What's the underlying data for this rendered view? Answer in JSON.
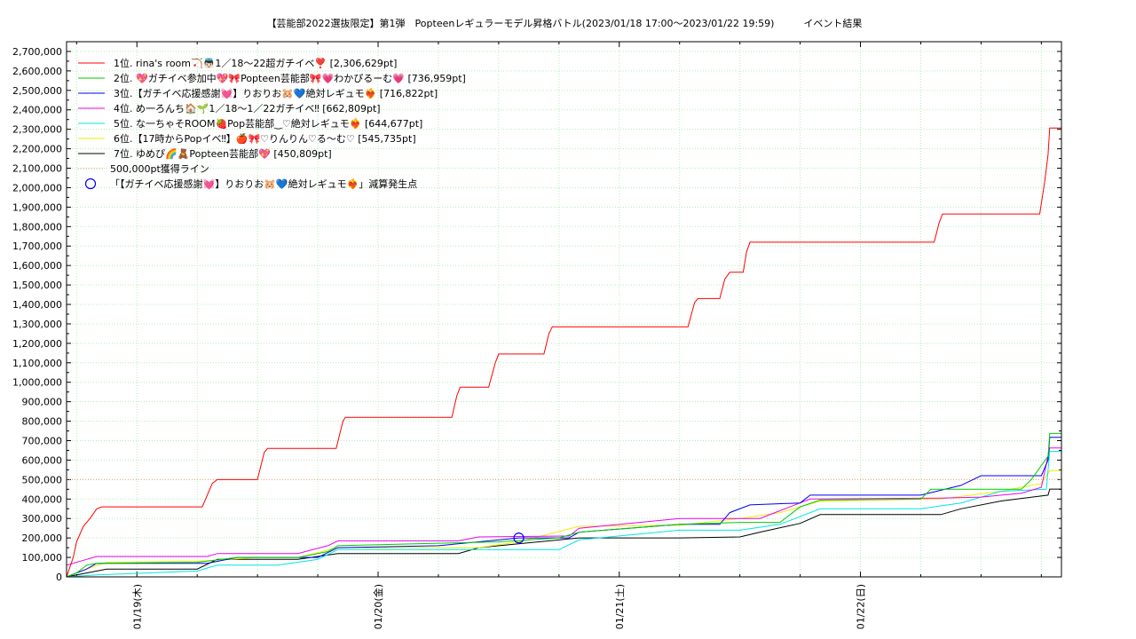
{
  "chart_data": {
    "type": "line",
    "title": "【芸能部2022選抜限定】第1弾　Popteenレギュラーモデル昇格バトル(2023/01/18 17:00〜2023/01/22 19:59)　　　イベント結果",
    "ylim": [
      0,
      2750000
    ],
    "xlim": [
      "2023-01-18 17:00",
      "2023-01-22 20:00"
    ],
    "grid": true,
    "legend_position": "top-left",
    "x_tick_labels": [
      "01/19(木)",
      "01/20(金)",
      "01/21(土)",
      "01/22(日)"
    ],
    "y_tick_labels": [
      "0",
      "100,000",
      "200,000",
      "300,000",
      "400,000",
      "500,000",
      "600,000",
      "700,000",
      "800,000",
      "900,000",
      "1,000,000",
      "1,100,000",
      "1,200,000",
      "1,300,000",
      "1,400,000",
      "1,500,000",
      "1,600,000",
      "1,700,000",
      "1,800,000",
      "1,900,000",
      "2,000,000",
      "2,100,000",
      "2,200,000",
      "2,300,000",
      "2,400,000",
      "2,500,000",
      "2,600,000",
      "2,700,000"
    ],
    "reference_line": {
      "label": "500,000pt獲得ライン",
      "value": 500000,
      "color": "#ff9966"
    },
    "marker": {
      "label": "「【ガチイベ応援感謝💓】りおりお🐹💙絶対レギュモ❤️‍🔥」減算発生点",
      "x": "2023-01-20 14:00",
      "y": 200000,
      "color": "#0000ff"
    },
    "series": [
      {
        "name": "1位. rina's room🏹👼🏻1／18〜22超ガチイベ❣️ [2,306,629pt]",
        "color": "#ff0000",
        "points": [
          [
            "2023-01-18 17:00",
            0
          ],
          [
            "2023-01-18 17:40",
            100000
          ],
          [
            "2023-01-18 18:00",
            180000
          ],
          [
            "2023-01-18 18:40",
            260000
          ],
          [
            "2023-01-18 19:20",
            300000
          ],
          [
            "2023-01-18 20:00",
            350000
          ],
          [
            "2023-01-18 20:30",
            360000
          ],
          [
            "2023-01-19 06:30",
            360000
          ],
          [
            "2023-01-19 07:30",
            480000
          ],
          [
            "2023-01-19 08:00",
            500000
          ],
          [
            "2023-01-19 12:00",
            500000
          ],
          [
            "2023-01-19 12:40",
            640000
          ],
          [
            "2023-01-19 13:00",
            660000
          ],
          [
            "2023-01-19 19:50",
            660000
          ],
          [
            "2023-01-19 20:30",
            800000
          ],
          [
            "2023-01-19 20:45",
            820000
          ],
          [
            "2023-01-20 07:20",
            820000
          ],
          [
            "2023-01-20 07:50",
            930000
          ],
          [
            "2023-01-20 08:10",
            975000
          ],
          [
            "2023-01-20 11:00",
            975000
          ],
          [
            "2023-01-20 11:40",
            1100000
          ],
          [
            "2023-01-20 12:00",
            1145000
          ],
          [
            "2023-01-20 16:30",
            1145000
          ],
          [
            "2023-01-20 17:00",
            1250000
          ],
          [
            "2023-01-20 17:20",
            1285000
          ],
          [
            "2023-01-21 06:50",
            1285000
          ],
          [
            "2023-01-21 07:30",
            1410000
          ],
          [
            "2023-01-21 07:50",
            1430000
          ],
          [
            "2023-01-21 10:00",
            1430000
          ],
          [
            "2023-01-21 10:30",
            1530000
          ],
          [
            "2023-01-21 11:00",
            1565000
          ],
          [
            "2023-01-21 12:20",
            1565000
          ],
          [
            "2023-01-21 12:40",
            1670000
          ],
          [
            "2023-01-21 13:00",
            1720000
          ],
          [
            "2023-01-22 07:20",
            1720000
          ],
          [
            "2023-01-22 07:50",
            1820000
          ],
          [
            "2023-01-22 08:10",
            1865000
          ],
          [
            "2023-01-22 17:50",
            1865000
          ],
          [
            "2023-01-22 18:20",
            2030000
          ],
          [
            "2023-01-22 18:40",
            2170000
          ],
          [
            "2023-01-22 18:50",
            2306629
          ],
          [
            "2023-01-22 20:00",
            2306629
          ]
        ]
      },
      {
        "name": "2位. 💖ガチイベ参加中💖🎀Popteen芸能部🎀💗わかぴるーむ💗 [736,959pt]",
        "color": "#00cc00",
        "points": [
          [
            "2023-01-18 17:00",
            0
          ],
          [
            "2023-01-18 18:00",
            20000
          ],
          [
            "2023-01-18 19:00",
            60000
          ],
          [
            "2023-01-18 20:00",
            70000
          ],
          [
            "2023-01-19 06:00",
            75000
          ],
          [
            "2023-01-19 10:00",
            100000
          ],
          [
            "2023-01-19 16:00",
            100000
          ],
          [
            "2023-01-19 19:00",
            130000
          ],
          [
            "2023-01-19 20:00",
            160000
          ],
          [
            "2023-01-20 08:00",
            175000
          ],
          [
            "2023-01-20 12:00",
            180000
          ],
          [
            "2023-01-20 18:00",
            200000
          ],
          [
            "2023-01-20 20:00",
            230000
          ],
          [
            "2023-01-21 06:00",
            270000
          ],
          [
            "2023-01-21 12:00",
            280000
          ],
          [
            "2023-01-21 16:00",
            280000
          ],
          [
            "2023-01-21 18:00",
            360000
          ],
          [
            "2023-01-21 20:00",
            395000
          ],
          [
            "2023-01-22 06:00",
            400000
          ],
          [
            "2023-01-22 07:00",
            450000
          ],
          [
            "2023-01-22 12:00",
            450000
          ],
          [
            "2023-01-22 16:00",
            450000
          ],
          [
            "2023-01-22 17:00",
            500000
          ],
          [
            "2023-01-22 18:40",
            620000
          ],
          [
            "2023-01-22 18:50",
            736959
          ],
          [
            "2023-01-22 20:00",
            736959
          ]
        ]
      },
      {
        "name": "3位.【ガチイベ応援感謝💓】りおりお🐹💙絶対レギュモ❤️‍🔥 [716,822pt]",
        "color": "#0000ee",
        "points": [
          [
            "2023-01-18 17:00",
            0
          ],
          [
            "2023-01-18 19:00",
            40000
          ],
          [
            "2023-01-18 20:00",
            70000
          ],
          [
            "2023-01-19 07:00",
            70000
          ],
          [
            "2023-01-19 10:00",
            100000
          ],
          [
            "2023-01-19 18:00",
            100000
          ],
          [
            "2023-01-19 20:00",
            150000
          ],
          [
            "2023-01-20 06:00",
            160000
          ],
          [
            "2023-01-20 10:00",
            180000
          ],
          [
            "2023-01-20 14:00",
            200000
          ],
          [
            "2023-01-20 19:00",
            200000
          ],
          [
            "2023-01-20 20:00",
            230000
          ],
          [
            "2023-01-21 06:00",
            270000
          ],
          [
            "2023-01-21 10:00",
            270000
          ],
          [
            "2023-01-21 11:00",
            330000
          ],
          [
            "2023-01-21 13:00",
            370000
          ],
          [
            "2023-01-21 18:00",
            380000
          ],
          [
            "2023-01-21 19:00",
            420000
          ],
          [
            "2023-01-22 06:00",
            420000
          ],
          [
            "2023-01-22 10:00",
            470000
          ],
          [
            "2023-01-22 12:00",
            520000
          ],
          [
            "2023-01-22 18:00",
            520000
          ],
          [
            "2023-01-22 18:40",
            600000
          ],
          [
            "2023-01-22 18:50",
            716822
          ],
          [
            "2023-01-22 20:00",
            716822
          ]
        ]
      },
      {
        "name": "4位. め一ろんち🏠🌱1／18〜1／22ガチイベ‼︎ [662,809pt]",
        "color": "#ee00ee",
        "points": [
          [
            "2023-01-18 17:00",
            60000
          ],
          [
            "2023-01-18 19:00",
            90000
          ],
          [
            "2023-01-18 20:00",
            105000
          ],
          [
            "2023-01-19 07:00",
            105000
          ],
          [
            "2023-01-19 08:00",
            120000
          ],
          [
            "2023-01-19 16:00",
            120000
          ],
          [
            "2023-01-19 19:00",
            160000
          ],
          [
            "2023-01-19 20:00",
            185000
          ],
          [
            "2023-01-20 08:00",
            185000
          ],
          [
            "2023-01-20 10:00",
            205000
          ],
          [
            "2023-01-20 19:00",
            210000
          ],
          [
            "2023-01-20 20:00",
            250000
          ],
          [
            "2023-01-21 06:00",
            300000
          ],
          [
            "2023-01-21 14:00",
            300000
          ],
          [
            "2023-01-21 16:00",
            340000
          ],
          [
            "2023-01-21 19:00",
            400000
          ],
          [
            "2023-01-22 08:00",
            405000
          ],
          [
            "2023-01-22 12:00",
            410000
          ],
          [
            "2023-01-22 16:00",
            430000
          ],
          [
            "2023-01-22 18:00",
            460000
          ],
          [
            "2023-01-22 18:50",
            662809
          ],
          [
            "2023-01-22 20:00",
            662809
          ]
        ]
      },
      {
        "name": "5位. な一ちゃそROOM🍓Pop芸能部‿♡絶対レギュモ❤️‍🔥 [644,677pt]",
        "color": "#00e5e5",
        "points": [
          [
            "2023-01-18 17:00",
            0
          ],
          [
            "2023-01-18 20:00",
            10000
          ],
          [
            "2023-01-19 06:00",
            30000
          ],
          [
            "2023-01-19 08:00",
            60000
          ],
          [
            "2023-01-19 14:00",
            60000
          ],
          [
            "2023-01-19 18:00",
            90000
          ],
          [
            "2023-01-19 20:00",
            140000
          ],
          [
            "2023-01-20 08:00",
            140000
          ],
          [
            "2023-01-20 12:00",
            140000
          ],
          [
            "2023-01-20 18:00",
            140000
          ],
          [
            "2023-01-20 20:00",
            190000
          ],
          [
            "2023-01-21 06:00",
            240000
          ],
          [
            "2023-01-21 12:00",
            240000
          ],
          [
            "2023-01-21 16:00",
            270000
          ],
          [
            "2023-01-21 20:00",
            350000
          ],
          [
            "2023-01-22 06:00",
            350000
          ],
          [
            "2023-01-22 10:00",
            380000
          ],
          [
            "2023-01-22 14:00",
            440000
          ],
          [
            "2023-01-22 18:30",
            450000
          ],
          [
            "2023-01-22 18:50",
            644677
          ],
          [
            "2023-01-22 20:00",
            644677
          ]
        ]
      },
      {
        "name": "6位.【17時からPopイベ‼︎】🍎🎀♡りんりん♡る〜む♡ [545,735pt]",
        "color": "#eeee00",
        "points": [
          [
            "2023-01-18 17:00",
            0
          ],
          [
            "2023-01-18 19:00",
            40000
          ],
          [
            "2023-01-18 21:00",
            75000
          ],
          [
            "2023-01-19 06:00",
            80000
          ],
          [
            "2023-01-19 12:00",
            100000
          ],
          [
            "2023-01-19 16:00",
            100000
          ],
          [
            "2023-01-19 20:00",
            150000
          ],
          [
            "2023-01-20 10:00",
            150000
          ],
          [
            "2023-01-20 14:00",
            180000
          ],
          [
            "2023-01-20 20:00",
            260000
          ],
          [
            "2023-01-21 06:00",
            265000
          ],
          [
            "2023-01-21 12:00",
            300000
          ],
          [
            "2023-01-21 16:00",
            330000
          ],
          [
            "2023-01-21 20:00",
            390000
          ],
          [
            "2023-01-22 08:00",
            400000
          ],
          [
            "2023-01-22 14:00",
            440000
          ],
          [
            "2023-01-22 18:00",
            480000
          ],
          [
            "2023-01-22 18:50",
            545735
          ],
          [
            "2023-01-22 20:00",
            545735
          ]
        ]
      },
      {
        "name": "7位. ゆめぴ🌈🧸Popteen芸能部💖 [450,809pt]",
        "color": "#000000",
        "points": [
          [
            "2023-01-18 17:00",
            0
          ],
          [
            "2023-01-18 19:00",
            20000
          ],
          [
            "2023-01-18 21:00",
            40000
          ],
          [
            "2023-01-19 06:00",
            40000
          ],
          [
            "2023-01-19 08:00",
            90000
          ],
          [
            "2023-01-19 16:00",
            90000
          ],
          [
            "2023-01-19 20:00",
            120000
          ],
          [
            "2023-01-20 08:00",
            120000
          ],
          [
            "2023-01-20 10:00",
            150000
          ],
          [
            "2023-01-20 16:00",
            180000
          ],
          [
            "2023-01-20 20:00",
            200000
          ],
          [
            "2023-01-21 06:00",
            200000
          ],
          [
            "2023-01-21 12:00",
            205000
          ],
          [
            "2023-01-21 14:00",
            230000
          ],
          [
            "2023-01-21 18:00",
            275000
          ],
          [
            "2023-01-21 20:00",
            320000
          ],
          [
            "2023-01-22 08:00",
            320000
          ],
          [
            "2023-01-22 10:00",
            350000
          ],
          [
            "2023-01-22 14:00",
            390000
          ],
          [
            "2023-01-22 18:40",
            420000
          ],
          [
            "2023-01-22 18:50",
            450809
          ],
          [
            "2023-01-22 20:00",
            450809
          ]
        ]
      }
    ]
  }
}
